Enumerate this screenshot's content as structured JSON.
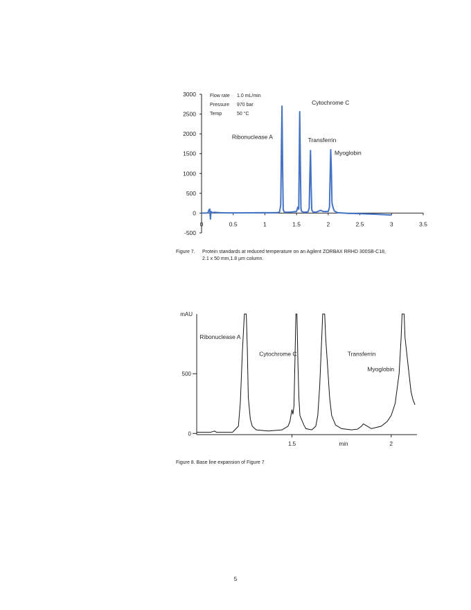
{
  "figure7": {
    "caption_number": "Figure 7.",
    "caption_line1": "Protein standards at reduced temperature on an Agilent ZORBAX RRHD 300SB-C18,",
    "caption_line2": "2.1 x 50 mm,1.8 µm column.",
    "conditions": [
      {
        "label": "Flow rate",
        "value": "1.0 mL/min"
      },
      {
        "label": "Pressure",
        "value": "970 bar"
      },
      {
        "label": "Temp",
        "value": "50 °C"
      }
    ],
    "line_color": "#4472c4"
  },
  "figure8": {
    "caption": "Figure 8. Base line expansion of Figure 7"
  },
  "page_number": "5",
  "chart_data": [
    {
      "type": "line",
      "x_ticks": [
        "0",
        "0.5",
        "1",
        "1.5",
        "2",
        "2.5",
        "3",
        "3.5"
      ],
      "y_ticks": [
        "3000",
        "2500",
        "2000",
        "1500",
        "1000",
        "500",
        "0",
        "-500"
      ],
      "xlim": [
        0,
        3.5
      ],
      "ylim": [
        -500,
        3000
      ],
      "peak_labels": [
        {
          "text": "Cytochrome C",
          "x": 1.74,
          "y": 2740
        },
        {
          "text": "Ribonuclease A",
          "x": 0.48,
          "y": 1870
        },
        {
          "text": "Transferrin",
          "x": 1.68,
          "y": 1790
        },
        {
          "text": "Myoglobin",
          "x": 2.1,
          "y": 1470
        }
      ],
      "points": [
        [
          0.0,
          0
        ],
        [
          0.05,
          0
        ],
        [
          0.1,
          5
        ],
        [
          0.12,
          90
        ],
        [
          0.13,
          100
        ],
        [
          0.14,
          -150
        ],
        [
          0.15,
          40
        ],
        [
          0.17,
          10
        ],
        [
          0.2,
          20
        ],
        [
          0.25,
          15
        ],
        [
          0.3,
          10
        ],
        [
          0.4,
          5
        ],
        [
          0.6,
          5
        ],
        [
          0.9,
          10
        ],
        [
          1.1,
          10
        ],
        [
          1.2,
          15
        ],
        [
          1.23,
          25
        ],
        [
          1.25,
          200
        ],
        [
          1.26,
          1500
        ],
        [
          1.27,
          2700
        ],
        [
          1.28,
          1200
        ],
        [
          1.29,
          80
        ],
        [
          1.31,
          20
        ],
        [
          1.4,
          25
        ],
        [
          1.5,
          40
        ],
        [
          1.52,
          150
        ],
        [
          1.535,
          100
        ],
        [
          1.545,
          1800
        ],
        [
          1.55,
          2560
        ],
        [
          1.56,
          1300
        ],
        [
          1.57,
          120
        ],
        [
          1.58,
          40
        ],
        [
          1.62,
          20
        ],
        [
          1.68,
          30
        ],
        [
          1.7,
          120
        ],
        [
          1.71,
          900
        ],
        [
          1.72,
          1580
        ],
        [
          1.73,
          700
        ],
        [
          1.74,
          80
        ],
        [
          1.76,
          30
        ],
        [
          1.8,
          20
        ],
        [
          1.85,
          50
        ],
        [
          1.88,
          70
        ],
        [
          1.92,
          40
        ],
        [
          2.0,
          40
        ],
        [
          2.02,
          150
        ],
        [
          2.03,
          900
        ],
        [
          2.04,
          1600
        ],
        [
          2.05,
          1100
        ],
        [
          2.06,
          250
        ],
        [
          2.08,
          120
        ],
        [
          2.1,
          50
        ],
        [
          2.15,
          10
        ],
        [
          2.3,
          -5
        ],
        [
          2.5,
          -15
        ],
        [
          2.7,
          -25
        ],
        [
          2.9,
          -40
        ],
        [
          3.0,
          -50
        ]
      ]
    },
    {
      "type": "line",
      "y_unit": "mAU",
      "x_unit": "min",
      "x_ticks": [
        "1.5",
        "2"
      ],
      "y_ticks": [
        "500",
        "0"
      ],
      "xlim": [
        1.02,
        2.13
      ],
      "ylim": [
        -10,
        1000
      ],
      "peak_labels": [
        {
          "text": "Ribonuclease A",
          "x": 1.035,
          "y": 790
        },
        {
          "text": "Cytochrome C",
          "x": 1.335,
          "y": 650
        },
        {
          "text": "Transferrin",
          "x": 1.78,
          "y": 650
        },
        {
          "text": "Myoglobin",
          "x": 1.88,
          "y": 520
        }
      ],
      "points": [
        [
          1.02,
          10
        ],
        [
          1.09,
          10
        ],
        [
          1.1,
          15
        ],
        [
          1.11,
          20
        ],
        [
          1.12,
          10
        ],
        [
          1.2,
          10
        ],
        [
          1.23,
          60
        ],
        [
          1.24,
          260
        ],
        [
          1.25,
          680
        ],
        [
          1.26,
          1000
        ],
        [
          1.27,
          1000
        ],
        [
          1.275,
          700
        ],
        [
          1.28,
          300
        ],
        [
          1.29,
          120
        ],
        [
          1.3,
          60
        ],
        [
          1.32,
          30
        ],
        [
          1.38,
          20
        ],
        [
          1.45,
          30
        ],
        [
          1.48,
          60
        ],
        [
          1.49,
          100
        ],
        [
          1.5,
          200
        ],
        [
          1.505,
          160
        ],
        [
          1.51,
          230
        ],
        [
          1.515,
          600
        ],
        [
          1.52,
          1000
        ],
        [
          1.525,
          1000
        ],
        [
          1.53,
          600
        ],
        [
          1.535,
          300
        ],
        [
          1.54,
          150
        ],
        [
          1.56,
          70
        ],
        [
          1.57,
          40
        ],
        [
          1.6,
          30
        ],
        [
          1.62,
          60
        ],
        [
          1.63,
          150
        ],
        [
          1.64,
          400
        ],
        [
          1.65,
          800
        ],
        [
          1.655,
          1000
        ],
        [
          1.665,
          1000
        ],
        [
          1.67,
          800
        ],
        [
          1.68,
          550
        ],
        [
          1.69,
          300
        ],
        [
          1.7,
          150
        ],
        [
          1.72,
          70
        ],
        [
          1.75,
          40
        ],
        [
          1.8,
          30
        ],
        [
          1.83,
          35
        ],
        [
          1.85,
          60
        ],
        [
          1.86,
          80
        ],
        [
          1.87,
          70
        ],
        [
          1.9,
          40
        ],
        [
          1.95,
          60
        ],
        [
          1.98,
          100
        ],
        [
          2.0,
          150
        ],
        [
          2.02,
          250
        ],
        [
          2.04,
          500
        ],
        [
          2.05,
          800
        ],
        [
          2.055,
          1000
        ],
        [
          2.065,
          1000
        ],
        [
          2.07,
          800
        ],
        [
          2.09,
          500
        ],
        [
          2.1,
          350
        ],
        [
          2.11,
          280
        ],
        [
          2.12,
          240
        ]
      ]
    }
  ]
}
